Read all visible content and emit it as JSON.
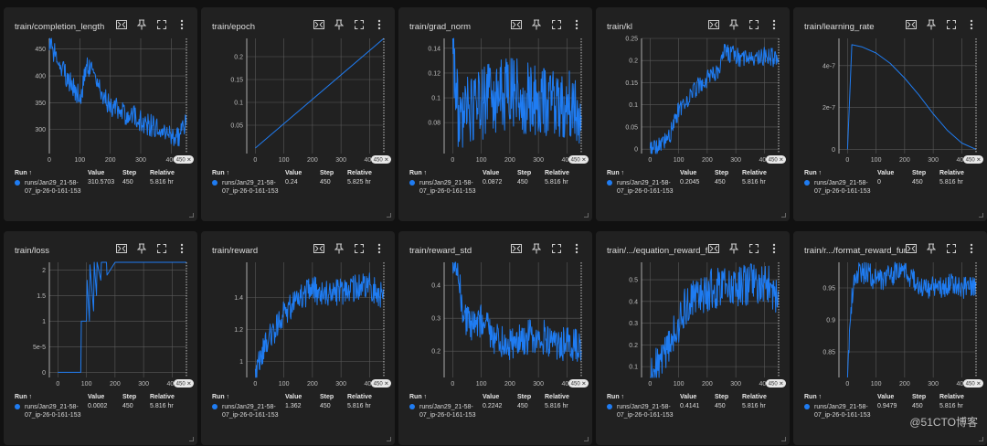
{
  "legend_header": {
    "run": "Run ↑",
    "value": "Value",
    "step": "Step",
    "relative": "Relative"
  },
  "step_badge": "450 ✕",
  "watermark": "@51CTO博客",
  "colors": {
    "series": "#1f7cf2",
    "card": "#212121",
    "background": "#111111"
  },
  "toolbar_icons": [
    "fit-domain-icon",
    "pin-icon",
    "fullscreen-icon",
    "more-vert-icon"
  ],
  "panels": [
    {
      "title": "train/completion_length",
      "run": "runs/Jan29_21-58-07_ip-26-0-161-153",
      "value": "310.5703",
      "step": "450",
      "relative": "5.816 hr"
    },
    {
      "title": "train/epoch",
      "run": "runs/Jan29_21-58-07_ip-26-0-161-153",
      "value": "0.24",
      "step": "450",
      "relative": "5.825 hr"
    },
    {
      "title": "train/grad_norm",
      "run": "runs/Jan29_21-58-07_ip-26-0-161-153",
      "value": "0.0872",
      "step": "450",
      "relative": "5.816 hr"
    },
    {
      "title": "train/kl",
      "run": "runs/Jan29_21-58-07_ip-26-0-161-153",
      "value": "0.2045",
      "step": "450",
      "relative": "5.816 hr"
    },
    {
      "title": "train/learning_rate",
      "run": "runs/Jan29_21-58-07_ip-26-0-161-153",
      "value": "0",
      "step": "450",
      "relative": "5.816 hr"
    },
    {
      "title": "train/loss",
      "run": "runs/Jan29_21-58-07_ip-26-0-161-153",
      "value": "0.0002",
      "step": "450",
      "relative": "5.816 hr"
    },
    {
      "title": "train/reward",
      "run": "runs/Jan29_21-58-07_ip-26-0-161-153",
      "value": "1.362",
      "step": "450",
      "relative": "5.816 hr"
    },
    {
      "title": "train/reward_std",
      "run": "runs/Jan29_21-58-07_ip-26-0-161-153",
      "value": "0.2242",
      "step": "450",
      "relative": "5.816 hr"
    },
    {
      "title": "train/.../equation_reward_func",
      "run": "runs/Jan29_21-58-07_ip-26-0-161-153",
      "value": "0.4141",
      "step": "450",
      "relative": "5.816 hr"
    },
    {
      "title": "train/r.../format_reward_func",
      "run": "runs/Jan29_21-58-07_ip-26-0-161-153",
      "value": "0.9479",
      "step": "450",
      "relative": "5.816 hr"
    }
  ],
  "chart_data": [
    {
      "type": "line",
      "title": "train/completion_length",
      "xlim": [
        0,
        450
      ],
      "ylim": [
        255,
        470
      ],
      "x_ticks": [
        "0",
        "100",
        "200",
        "300",
        "400"
      ],
      "y_ticks": [
        {
          "v": 300,
          "t": "300"
        },
        {
          "v": 350,
          "t": "350"
        },
        {
          "v": 400,
          "t": "400"
        },
        {
          "v": 450,
          "t": "450"
        }
      ],
      "x": [
        0,
        25,
        50,
        75,
        100,
        125,
        150,
        175,
        200,
        225,
        250,
        275,
        300,
        325,
        350,
        375,
        400,
        425,
        450
      ],
      "y": [
        465,
        430,
        405,
        380,
        360,
        415,
        395,
        360,
        345,
        335,
        325,
        330,
        315,
        310,
        305,
        295,
        285,
        290,
        310
      ],
      "noise": 0.1
    },
    {
      "type": "line",
      "title": "train/epoch",
      "xlim": [
        -30,
        450
      ],
      "ylim": [
        -0.012,
        0.24
      ],
      "x_ticks": [
        "0",
        "100",
        "200",
        "300",
        "400"
      ],
      "y_ticks": [
        {
          "v": 0.05,
          "t": "0.05"
        },
        {
          "v": 0.1,
          "t": "0.1"
        },
        {
          "v": 0.15,
          "t": "0.15"
        },
        {
          "v": 0.2,
          "t": "0.2"
        }
      ],
      "x": [
        0,
        450
      ],
      "y": [
        0,
        0.24
      ],
      "noise": 0
    },
    {
      "type": "line",
      "title": "train/grad_norm",
      "xlim": [
        -30,
        450
      ],
      "ylim": [
        0.055,
        0.148
      ],
      "x_ticks": [
        "0",
        "100",
        "200",
        "300",
        "400"
      ],
      "y_ticks": [
        {
          "v": 0.08,
          "t": "0.08"
        },
        {
          "v": 0.1,
          "t": "0.1"
        },
        {
          "v": 0.12,
          "t": "0.12"
        },
        {
          "v": 0.14,
          "t": "0.14"
        }
      ],
      "x": [
        0,
        20,
        50,
        100,
        150,
        200,
        250,
        300,
        350,
        400,
        450
      ],
      "y": [
        0.145,
        0.085,
        0.09,
        0.095,
        0.1,
        0.105,
        0.1,
        0.095,
        0.1,
        0.095,
        0.09
      ],
      "noise": 0.32
    },
    {
      "type": "line",
      "title": "train/kl",
      "xlim": [
        -30,
        450
      ],
      "ylim": [
        -0.01,
        0.25
      ],
      "x_ticks": [
        "0",
        "100",
        "200",
        "300",
        "400"
      ],
      "y_ticks": [
        {
          "v": 0,
          "t": "0"
        },
        {
          "v": 0.05,
          "t": "0.05"
        },
        {
          "v": 0.1,
          "t": "0.1"
        },
        {
          "v": 0.15,
          "t": "0.15"
        },
        {
          "v": 0.2,
          "t": "0.2"
        },
        {
          "v": 0.25,
          "t": "0.25"
        }
      ],
      "x": [
        0,
        30,
        60,
        80,
        100,
        150,
        200,
        240,
        260,
        300,
        350,
        400,
        450
      ],
      "y": [
        0,
        0.005,
        0.02,
        0.05,
        0.09,
        0.13,
        0.16,
        0.17,
        0.22,
        0.21,
        0.2,
        0.21,
        0.205
      ],
      "noise": 0.08
    },
    {
      "type": "line",
      "title": "train/learning_rate",
      "xlim": [
        -30,
        450
      ],
      "ylim": [
        -2e-08,
        5.3e-07
      ],
      "x_ticks": [
        "0",
        "100",
        "200",
        "300",
        "400"
      ],
      "y_ticks": [
        {
          "v": 0,
          "t": "0"
        },
        {
          "v": 2e-07,
          "t": "2e-7"
        },
        {
          "v": 4e-07,
          "t": "4e-7"
        }
      ],
      "x": [
        0,
        15,
        50,
        100,
        150,
        200,
        250,
        300,
        350,
        400,
        450
      ],
      "y": [
        0,
        5e-07,
        4.9e-07,
        4.6e-07,
        4.1e-07,
        3.4e-07,
        2.6e-07,
        1.7e-07,
        9e-08,
        3e-08,
        0
      ],
      "noise": 0
    },
    {
      "type": "line",
      "title": "train/loss",
      "xlim": [
        -30,
        450
      ],
      "ylim": [
        -1e-05,
        0.000215
      ],
      "x_ticks": [
        "0",
        "100",
        "200",
        "300",
        "400"
      ],
      "y_ticks": [
        {
          "v": 0,
          "t": "0"
        },
        {
          "v": 5e-05,
          "t": "5e-5"
        },
        {
          "v": 0.0001,
          "t": "1"
        },
        {
          "v": 0.00015,
          "t": "1.5"
        },
        {
          "v": 0.0002,
          "t": "2"
        }
      ],
      "x": [
        0,
        80,
        82,
        100,
        102,
        110,
        112,
        125,
        127,
        135,
        137,
        150,
        152,
        170,
        172,
        200,
        202,
        250,
        252,
        300,
        302,
        350,
        352,
        450
      ],
      "y": [
        0,
        0,
        0.0001,
        0.0001,
        0.00018,
        0.0001,
        0.00021,
        0.00012,
        0.00022,
        0.00015,
        0.00022,
        0.00018,
        0.00022,
        0.00022,
        0.00019,
        0.00022,
        0.00022,
        0.00022,
        0.00022,
        0.00022,
        0.00022,
        0.00022,
        0.00022,
        0.00022
      ],
      "noise": 0
    },
    {
      "type": "line",
      "title": "train/reward",
      "xlim": [
        -30,
        450
      ],
      "ylim": [
        0.9,
        1.62
      ],
      "x_ticks": [
        "0",
        "100",
        "200",
        "300",
        "400"
      ],
      "y_ticks": [
        {
          "v": 1,
          "t": "1"
        },
        {
          "v": 1.2,
          "t": "1.2"
        },
        {
          "v": 1.4,
          "t": "1.4"
        }
      ],
      "x": [
        0,
        25,
        50,
        75,
        100,
        150,
        200,
        250,
        300,
        350,
        400,
        450
      ],
      "y": [
        0.92,
        1.05,
        1.15,
        1.22,
        1.3,
        1.4,
        1.45,
        1.42,
        1.43,
        1.46,
        1.47,
        1.4
      ],
      "noise": 0.12
    },
    {
      "type": "line",
      "title": "train/reward_std",
      "xlim": [
        -30,
        450
      ],
      "ylim": [
        0.12,
        0.47
      ],
      "x_ticks": [
        "0",
        "100",
        "200",
        "300",
        "400"
      ],
      "y_ticks": [
        {
          "v": 0.2,
          "t": "0.2"
        },
        {
          "v": 0.3,
          "t": "0.3"
        },
        {
          "v": 0.4,
          "t": "0.4"
        }
      ],
      "x": [
        0,
        20,
        40,
        60,
        100,
        150,
        200,
        250,
        300,
        350,
        400,
        450
      ],
      "y": [
        0.47,
        0.42,
        0.3,
        0.28,
        0.29,
        0.24,
        0.22,
        0.24,
        0.25,
        0.23,
        0.22,
        0.22
      ],
      "noise": 0.15
    },
    {
      "type": "line",
      "title": "train/.../equation_reward_func",
      "xlim": [
        -30,
        450
      ],
      "ylim": [
        0.05,
        0.58
      ],
      "x_ticks": [
        "0",
        "100",
        "200",
        "300",
        "400"
      ],
      "y_ticks": [
        {
          "v": 0.1,
          "t": "0.1"
        },
        {
          "v": 0.2,
          "t": "0.2"
        },
        {
          "v": 0.3,
          "t": "0.3"
        },
        {
          "v": 0.4,
          "t": "0.4"
        },
        {
          "v": 0.5,
          "t": "0.5"
        }
      ],
      "x": [
        0,
        25,
        50,
        75,
        100,
        125,
        150,
        200,
        250,
        300,
        350,
        400,
        450
      ],
      "y": [
        0.06,
        0.1,
        0.15,
        0.22,
        0.3,
        0.38,
        0.42,
        0.45,
        0.47,
        0.46,
        0.48,
        0.49,
        0.42
      ],
      "noise": 0.18
    },
    {
      "type": "line",
      "title": "train/r.../format_reward_func",
      "xlim": [
        -30,
        450
      ],
      "ylim": [
        0.81,
        0.99
      ],
      "x_ticks": [
        "0",
        "100",
        "200",
        "300",
        "400"
      ],
      "y_ticks": [
        {
          "v": 0.85,
          "t": "0.85"
        },
        {
          "v": 0.9,
          "t": "0.9"
        },
        {
          "v": 0.95,
          "t": "0.95"
        }
      ],
      "x": [
        0,
        10,
        20,
        40,
        80,
        100,
        150,
        200,
        250,
        300,
        350,
        400,
        450
      ],
      "y": [
        0.81,
        0.9,
        0.96,
        0.975,
        0.97,
        0.96,
        0.97,
        0.98,
        0.95,
        0.95,
        0.955,
        0.95,
        0.948
      ],
      "noise": 0.1
    }
  ]
}
